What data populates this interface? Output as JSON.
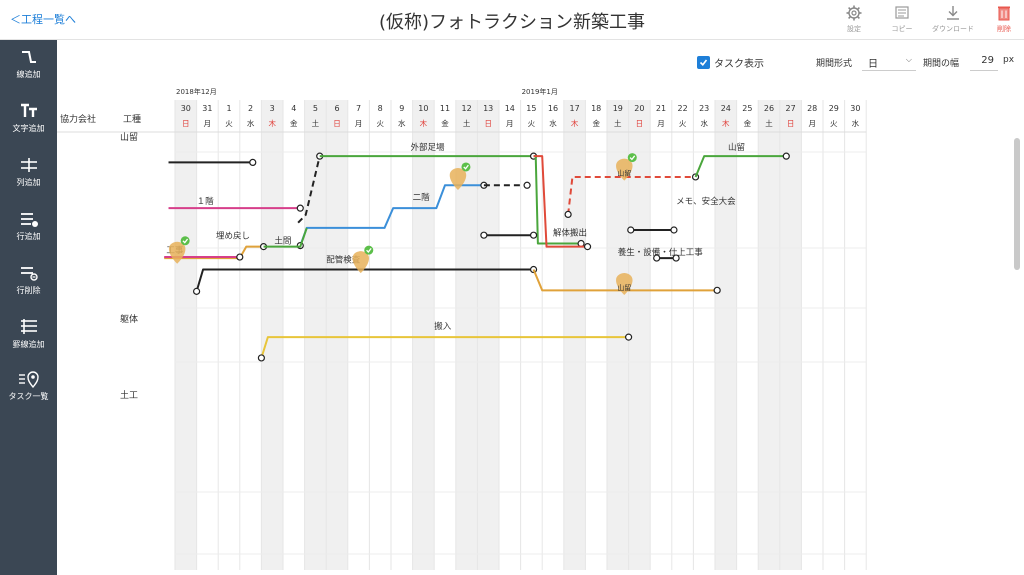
{
  "header": {
    "back_label": "＜工程一覧へ",
    "title": "(仮称)フォトラクション新築工事",
    "tools": [
      {
        "name": "settings",
        "icon": "gear-icon",
        "label": "設定"
      },
      {
        "name": "copy",
        "icon": "copy-icon",
        "label": "コピー"
      },
      {
        "name": "download",
        "icon": "download-icon",
        "label": "ダウンロード"
      },
      {
        "name": "delete",
        "icon": "trash-icon",
        "label": "削除",
        "color": "#e8574e"
      }
    ]
  },
  "sidebar": {
    "items": [
      {
        "name": "line-add",
        "icon": "line-icon",
        "label": "線追加"
      },
      {
        "name": "text-add",
        "icon": "text-icon",
        "label": "文字追加"
      },
      {
        "name": "column-add",
        "icon": "column-icon",
        "label": "列追加"
      },
      {
        "name": "row-add",
        "icon": "row-add-icon",
        "label": "行追加"
      },
      {
        "name": "row-delete",
        "icon": "row-delete-icon",
        "label": "行削除"
      },
      {
        "name": "gridline-add",
        "icon": "gridline-icon",
        "label": "罫線追加"
      },
      {
        "name": "task-list",
        "icon": "location-pin-icon",
        "label": "タスク一覧"
      }
    ]
  },
  "options": {
    "task_display_label": "タスク表示",
    "task_display_checked": true,
    "period_type_label": "期間形式",
    "period_type_value": "日",
    "period_width_label": "期間の幅",
    "period_width_value": "29",
    "period_width_unit": "px"
  },
  "calendar": {
    "column_headers": {
      "company": "協力会社",
      "trade": "工種"
    },
    "months": [
      {
        "label": "2018年12月",
        "day_index": 0
      },
      {
        "label": "2019年1月",
        "day_index": 16
      }
    ],
    "days": [
      {
        "d": "30",
        "w": "日",
        "type": "holiday"
      },
      {
        "d": "31",
        "w": "月",
        "type": "weekday"
      },
      {
        "d": "1",
        "w": "火",
        "type": "weekday"
      },
      {
        "d": "2",
        "w": "水",
        "type": "weekday"
      },
      {
        "d": "3",
        "w": "木",
        "type": "holiday"
      },
      {
        "d": "4",
        "w": "金",
        "type": "weekday"
      },
      {
        "d": "5",
        "w": "土",
        "type": "sat"
      },
      {
        "d": "6",
        "w": "日",
        "type": "holiday"
      },
      {
        "d": "7",
        "w": "月",
        "type": "weekday"
      },
      {
        "d": "8",
        "w": "火",
        "type": "weekday"
      },
      {
        "d": "9",
        "w": "水",
        "type": "weekday"
      },
      {
        "d": "10",
        "w": "木",
        "type": "holiday"
      },
      {
        "d": "11",
        "w": "金",
        "type": "weekday"
      },
      {
        "d": "12",
        "w": "土",
        "type": "sat"
      },
      {
        "d": "13",
        "w": "日",
        "type": "holiday"
      },
      {
        "d": "14",
        "w": "月",
        "type": "weekday"
      },
      {
        "d": "15",
        "w": "火",
        "type": "weekday"
      },
      {
        "d": "16",
        "w": "水",
        "type": "weekday"
      },
      {
        "d": "17",
        "w": "木",
        "type": "holiday"
      },
      {
        "d": "18",
        "w": "金",
        "type": "weekday"
      },
      {
        "d": "19",
        "w": "土",
        "type": "sat"
      },
      {
        "d": "20",
        "w": "日",
        "type": "holiday"
      },
      {
        "d": "21",
        "w": "月",
        "type": "weekday"
      },
      {
        "d": "22",
        "w": "火",
        "type": "weekday"
      },
      {
        "d": "23",
        "w": "水",
        "type": "weekday"
      },
      {
        "d": "24",
        "w": "木",
        "type": "holiday"
      },
      {
        "d": "25",
        "w": "金",
        "type": "weekday"
      },
      {
        "d": "26",
        "w": "土",
        "type": "sat"
      },
      {
        "d": "27",
        "w": "日",
        "type": "holiday"
      },
      {
        "d": "28",
        "w": "月",
        "type": "weekday"
      },
      {
        "d": "29",
        "w": "火",
        "type": "weekday"
      },
      {
        "d": "30",
        "w": "水",
        "type": "weekday"
      }
    ],
    "row_labels": [
      "山留",
      "躯体",
      "土工"
    ],
    "colors": {
      "black": "#222222",
      "green": "#4aa63c",
      "blue": "#3b8fd9",
      "magenta": "#d63e8a",
      "orange": "#e0a23a",
      "red": "#e04a3a",
      "yellow": "#e8c53a",
      "sunday": "#e0403a",
      "task_marker": "#e8b25a",
      "check": "#5cbf4a"
    }
  },
  "lines": [
    {
      "name": "black-start",
      "color": "black",
      "points": [
        [
          -0.3,
          1.0
        ],
        [
          3.6,
          1.0
        ]
      ],
      "start_dot": false,
      "end_dot": true
    },
    {
      "name": "black-dash-vertical",
      "color": "black",
      "dashed": true,
      "points": [
        [
          5.7,
          6.8
        ],
        [
          6.05,
          6.05
        ],
        [
          6.7,
          0.4
        ]
      ],
      "start_dot": false,
      "end_dot": true
    },
    {
      "name": "gaiburi-ashiba",
      "color": "green",
      "label": "外部足場",
      "label_at": [
        10.9,
        0.0
      ],
      "points": [
        [
          6.7,
          0.4
        ],
        [
          16.6,
          0.4
        ]
      ],
      "start_dot": false,
      "end_dot": true
    },
    {
      "name": "magenta-1f",
      "color": "magenta",
      "label": "１階",
      "label_at": [
        1.0,
        5.2
      ],
      "points": [
        [
          -0.3,
          5.4
        ],
        [
          5.8,
          5.4
        ]
      ],
      "start_dot": false,
      "end_dot": true
    },
    {
      "name": "gaiburi-green-2",
      "color": "green",
      "points": [
        [
          16.6,
          0.4
        ],
        [
          16.7,
          0.4
        ],
        [
          16.8,
          8.8
        ],
        [
          18.8,
          8.8
        ]
      ],
      "start_dot": false,
      "end_dot": true
    },
    {
      "name": "kaitai-red",
      "color": "red",
      "label": "解体搬出",
      "label_at": [
        17.5,
        8.2
      ],
      "points": [
        [
          16.6,
          0.4
        ],
        [
          17.0,
          0.4
        ],
        [
          17.2,
          9.1
        ],
        [
          19.1,
          9.1
        ]
      ],
      "start_dot": false,
      "end_dot": true
    },
    {
      "name": "red-dash",
      "color": "red",
      "dashed": true,
      "points": [
        [
          18.2,
          6.0
        ],
        [
          18.4,
          2.4
        ],
        [
          24.1,
          2.4
        ]
      ],
      "start_dot": true,
      "end_dot": true
    },
    {
      "name": "yamadome-2",
      "color": "green",
      "label": "山留",
      "label_at": [
        25.6,
        0.0
      ],
      "points": [
        [
          24.1,
          2.4
        ],
        [
          24.5,
          0.4
        ],
        [
          28.3,
          0.4
        ]
      ],
      "start_dot": false,
      "end_dot": true
    },
    {
      "name": "blue-2f",
      "color": "blue",
      "label": "二階",
      "label_at": [
        11.0,
        4.8
      ],
      "points": [
        [
          5.8,
          9.0
        ],
        [
          6.1,
          7.3
        ],
        [
          9.7,
          7.3
        ],
        [
          10.1,
          5.4
        ],
        [
          12.1,
          5.4
        ],
        [
          12.5,
          3.2
        ],
        [
          14.3,
          3.2
        ]
      ],
      "start_dot": true,
      "end_dot": true
    },
    {
      "name": "black-dash-2",
      "color": "black",
      "dashed": true,
      "points": [
        [
          14.3,
          3.2
        ],
        [
          16.3,
          3.2
        ]
      ],
      "start_dot": false,
      "end_dot": true
    },
    {
      "name": "black-mid",
      "color": "black",
      "points": [
        [
          14.3,
          8.0
        ],
        [
          16.6,
          8.0
        ]
      ],
      "start_dot": true,
      "end_dot": true
    },
    {
      "name": "black-short",
      "color": "black",
      "points": [
        [
          21.1,
          7.5
        ],
        [
          23.1,
          7.5
        ]
      ],
      "start_dot": true,
      "end_dot": true
    },
    {
      "name": "black-youjou",
      "color": "black",
      "points": [
        [
          22.3,
          10.2
        ],
        [
          23.2,
          10.2
        ]
      ],
      "start_dot": true,
      "end_dot": true
    },
    {
      "name": "kuitai-orange",
      "color": "orange",
      "label": "埋め戻し",
      "label_at": [
        1.9,
        8.5
      ],
      "points": [
        [
          -0.5,
          10.2
        ],
        [
          3.0,
          10.2
        ],
        [
          3.3,
          9.1
        ],
        [
          4.1,
          9.1
        ]
      ],
      "start_dot": false,
      "end_dot": true
    },
    {
      "name": "doryu-green",
      "color": "green",
      "label": "土間",
      "label_at": [
        4.6,
        9.0
      ],
      "points": [
        [
          4.1,
          9.1
        ],
        [
          5.8,
          9.1
        ],
        [
          6.1,
          7.3
        ]
      ],
      "start_dot": false,
      "end_dot": false
    },
    {
      "name": "magenta-koji",
      "color": "magenta",
      "points": [
        [
          -0.5,
          10.1
        ],
        [
          3.0,
          10.1
        ]
      ],
      "start_dot": false,
      "end_dot": true
    },
    {
      "name": "haikan-kensa",
      "color": "black",
      "label": "配管検査",
      "label_at": [
        7.0,
        10.8
      ],
      "points": [
        [
          1.0,
          13.4
        ],
        [
          1.3,
          11.3
        ],
        [
          16.6,
          11.3
        ]
      ],
      "start_dot": true,
      "end_dot": true
    },
    {
      "name": "orange-do",
      "color": "orange",
      "points": [
        [
          16.6,
          11.3
        ],
        [
          17.0,
          13.3
        ],
        [
          25.1,
          13.3
        ]
      ],
      "start_dot": false,
      "end_dot": true
    },
    {
      "name": "hannyu-yellow",
      "color": "yellow",
      "label": "搬入",
      "label_at": [
        12.0,
        17.2
      ],
      "points": [
        [
          4.0,
          19.8
        ],
        [
          4.3,
          17.8
        ],
        [
          21.0,
          17.8
        ]
      ],
      "start_dot": true,
      "end_dot": true
    }
  ],
  "labels": [
    {
      "name": "memo-label",
      "text": "メモ、安全大会",
      "at": [
        23.2,
        5.0
      ]
    },
    {
      "name": "youjou-label",
      "text": "養生・設備・仕上工事",
      "at": [
        20.5,
        9.9
      ]
    },
    {
      "name": "kouji-label",
      "text": "工事",
      "at": [
        -0.4,
        9.7
      ]
    }
  ],
  "tasks": [
    {
      "name": "task-marker-1",
      "at": [
        13.1,
        2.4
      ],
      "checked": true
    },
    {
      "name": "task-marker-2",
      "at": [
        20.8,
        1.5
      ],
      "checked": true,
      "caption": "山留"
    },
    {
      "name": "task-marker-3",
      "at": [
        8.6,
        10.4
      ],
      "checked": true
    },
    {
      "name": "task-marker-4",
      "at": [
        0.1,
        9.5
      ],
      "checked": true
    },
    {
      "name": "task-marker-5",
      "at": [
        20.8,
        12.5
      ],
      "checked": false,
      "caption": "山留"
    }
  ]
}
